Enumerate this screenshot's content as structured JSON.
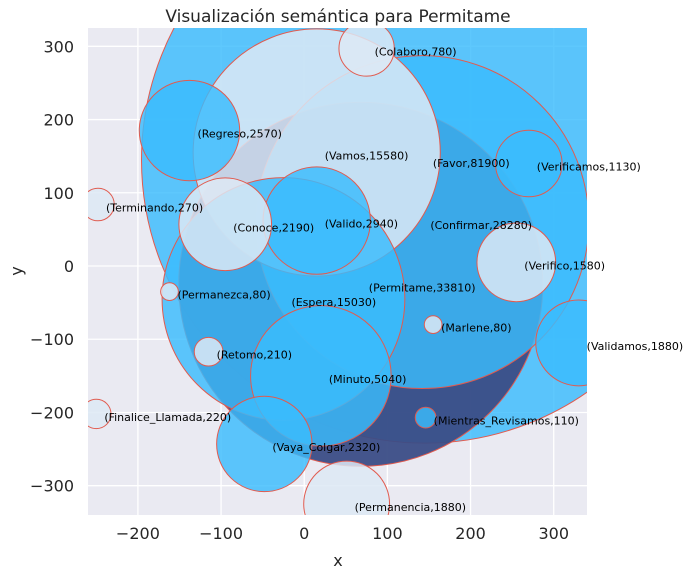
{
  "chart_data": {
    "type": "scatter",
    "title": "Visualización semántica para Permitame",
    "xlabel": "x",
    "ylabel": "y",
    "xlim": [
      -260,
      340
    ],
    "ylim": [
      -340,
      325
    ],
    "xticks": [
      -200,
      -100,
      0,
      100,
      200,
      300
    ],
    "yticks": [
      -300,
      -200,
      -100,
      0,
      100,
      200,
      300
    ],
    "xtick_labels": [
      "−200",
      "−100",
      "0",
      "100",
      "200",
      "300"
    ],
    "ytick_labels": [
      "−300",
      "−200",
      "−100",
      "0",
      "100",
      "200",
      "300"
    ],
    "grid": true,
    "colors": {
      "background": "#eaeaf2",
      "grid": "#ffffff",
      "highlight_fill": "#3b4d86",
      "filled_bubble": "#3bbcfd",
      "empty_bubble": "#dde9f4",
      "edge": "#e15b4f"
    },
    "points": [
      {
        "word": "Favor",
        "count": 81900,
        "x": 145,
        "y": 145,
        "filled": true
      },
      {
        "word": "Permitame",
        "count": 33810,
        "x": 68,
        "y": -25,
        "filled": true,
        "highlight": true
      },
      {
        "word": "Confirmar",
        "count": 28280,
        "x": 142,
        "y": 60,
        "filled": true
      },
      {
        "word": "Vamos",
        "count": 15580,
        "x": 15,
        "y": 155,
        "filled": false
      },
      {
        "word": "Espera",
        "count": 15030,
        "x": -25,
        "y": -45,
        "filled": true
      },
      {
        "word": "Minuto",
        "count": 5040,
        "x": 20,
        "y": -150,
        "filled": true
      },
      {
        "word": "Valido",
        "count": 2940,
        "x": 15,
        "y": 62,
        "filled": true
      },
      {
        "word": "Regreso",
        "count": 2570,
        "x": -138,
        "y": 185,
        "filled": true
      },
      {
        "word": "Vaya_Colgar",
        "count": 2320,
        "x": -48,
        "y": -243,
        "filled": true
      },
      {
        "word": "Conoce",
        "count": 2190,
        "x": -95,
        "y": 57,
        "filled": false
      },
      {
        "word": "Permanencia",
        "count": 1880,
        "x": 51,
        "y": -325,
        "filled": false
      },
      {
        "word": "Validamos",
        "count": 1880,
        "x": 330,
        "y": -105,
        "filled": true
      },
      {
        "word": "Verifico",
        "count": 1580,
        "x": 255,
        "y": 5,
        "filled": false
      },
      {
        "word": "Verificamos",
        "count": 1130,
        "x": 270,
        "y": 140,
        "filled": true
      },
      {
        "word": "Colaboro",
        "count": 780,
        "x": 75,
        "y": 297,
        "filled": false
      },
      {
        "word": "Terminando",
        "count": 270,
        "x": -248,
        "y": 84,
        "filled": false
      },
      {
        "word": "Finalice_Llamada",
        "count": 220,
        "x": -250,
        "y": -202,
        "filled": false
      },
      {
        "word": "Retomo",
        "count": 210,
        "x": -115,
        "y": -117,
        "filled": false
      },
      {
        "word": "Mientras_Revisamos",
        "count": 110,
        "x": 146,
        "y": -207,
        "filled": true
      },
      {
        "word": "Permanezca",
        "count": 80,
        "x": -162,
        "y": -35,
        "filled": false
      },
      {
        "word": "Marlene",
        "count": 80,
        "x": 155,
        "y": -80,
        "filled": false
      }
    ]
  }
}
